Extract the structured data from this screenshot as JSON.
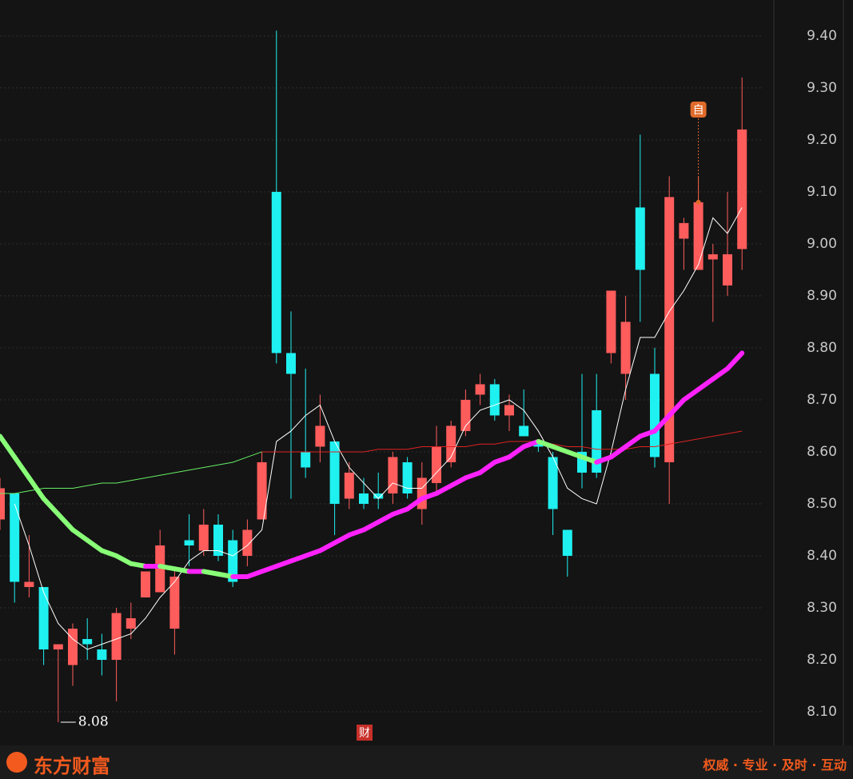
{
  "chart_data": {
    "type": "candlestick",
    "up_color": "#ff5c5c",
    "down_color": "#1ff0f0",
    "open": [
      8.47,
      8.52,
      8.34,
      8.34,
      8.22,
      8.19,
      8.24,
      8.22,
      8.2,
      8.26,
      8.32,
      8.33,
      8.26,
      8.43,
      8.41,
      8.46,
      8.43,
      8.4,
      8.47,
      9.1,
      8.79,
      8.6,
      8.61,
      8.62,
      8.51,
      8.52,
      8.52,
      8.52,
      8.58,
      8.49,
      8.54,
      8.58,
      8.64,
      8.71,
      8.73,
      8.67,
      8.65,
      8.62,
      8.59,
      8.45,
      8.6,
      8.68,
      8.79,
      8.75,
      9.07,
      8.75,
      8.58,
      9.01,
      8.95,
      8.97,
      8.92,
      8.99
    ],
    "high": [
      8.55,
      8.52,
      8.44,
      8.34,
      8.23,
      8.27,
      8.28,
      8.25,
      8.3,
      8.31,
      8.37,
      8.45,
      8.37,
      8.48,
      8.49,
      8.48,
      8.45,
      8.47,
      8.6,
      9.41,
      8.87,
      8.76,
      8.71,
      8.62,
      8.58,
      8.55,
      8.56,
      8.6,
      8.59,
      8.58,
      8.65,
      8.66,
      8.72,
      8.75,
      8.74,
      8.71,
      8.72,
      8.62,
      8.6,
      8.45,
      8.75,
      8.75,
      8.91,
      8.9,
      9.21,
      8.8,
      9.13,
      9.05,
      9.13,
      9.0,
      9.1,
      9.32
    ],
    "low": [
      8.45,
      8.31,
      8.32,
      8.19,
      8.08,
      8.15,
      8.2,
      8.17,
      8.12,
      8.24,
      8.32,
      8.33,
      8.21,
      8.38,
      8.4,
      8.39,
      8.34,
      8.38,
      8.47,
      8.77,
      8.51,
      8.55,
      8.58,
      8.44,
      8.49,
      8.49,
      8.49,
      8.5,
      8.51,
      8.46,
      8.52,
      8.57,
      8.63,
      8.69,
      8.66,
      8.64,
      8.63,
      8.6,
      8.44,
      8.36,
      8.53,
      8.55,
      8.77,
      8.7,
      8.85,
      8.57,
      8.5,
      8.95,
      8.95,
      8.85,
      8.9,
      8.95
    ],
    "close": [
      8.53,
      8.35,
      8.35,
      8.22,
      8.23,
      8.26,
      8.23,
      8.2,
      8.29,
      8.28,
      8.37,
      8.42,
      8.36,
      8.42,
      8.46,
      8.4,
      8.35,
      8.45,
      8.58,
      8.79,
      8.75,
      8.57,
      8.65,
      8.5,
      8.56,
      8.5,
      8.51,
      8.59,
      8.52,
      8.55,
      8.61,
      8.65,
      8.7,
      8.73,
      8.67,
      8.69,
      8.63,
      8.61,
      8.49,
      8.4,
      8.56,
      8.56,
      8.91,
      8.85,
      8.95,
      8.59,
      9.09,
      9.04,
      9.08,
      8.98,
      8.98,
      9.22
    ],
    "lines": [
      {
        "color": "#ffffff",
        "values": [
          null,
          8.5,
          8.42,
          8.33,
          8.27,
          8.24,
          8.22,
          8.23,
          8.24,
          8.25,
          8.28,
          8.32,
          8.35,
          8.39,
          8.41,
          8.41,
          8.4,
          8.42,
          8.45,
          8.62,
          8.64,
          8.67,
          8.69,
          8.62,
          8.57,
          8.54,
          8.51,
          8.54,
          8.53,
          8.53,
          8.56,
          8.59,
          8.65,
          8.68,
          8.69,
          8.7,
          8.68,
          8.64,
          8.59,
          8.53,
          8.51,
          8.5,
          8.6,
          8.72,
          8.82,
          8.82,
          8.87,
          8.91,
          8.96,
          9.05,
          9.02,
          9.07
        ]
      },
      {
        "color": "#66ee66",
        "values": [
          8.52,
          8.52,
          8.525,
          8.53,
          8.53,
          8.53,
          8.535,
          8.54,
          8.54,
          8.545,
          8.55,
          8.555,
          8.56,
          8.565,
          8.57,
          8.575,
          8.58,
          8.59,
          8.6,
          null,
          null,
          null,
          null,
          null,
          null,
          null,
          null,
          null,
          null,
          null,
          null,
          null,
          null,
          null,
          null,
          null,
          null,
          null,
          null,
          null,
          null,
          null,
          null,
          null,
          null,
          null,
          null,
          null,
          null,
          null,
          null,
          null
        ]
      },
      {
        "color": "#dd2222",
        "values": [
          null,
          null,
          null,
          null,
          null,
          null,
          null,
          null,
          null,
          null,
          null,
          null,
          null,
          null,
          null,
          null,
          null,
          null,
          8.6,
          8.6,
          8.6,
          8.6,
          8.6,
          8.6,
          8.6,
          8.6,
          8.605,
          8.605,
          8.605,
          8.61,
          8.61,
          8.61,
          8.61,
          8.615,
          8.615,
          8.62,
          8.62,
          8.62,
          8.615,
          8.61,
          8.61,
          8.605,
          8.605,
          8.605,
          8.61,
          8.61,
          8.615,
          8.62,
          8.625,
          8.63,
          8.635,
          8.64
        ]
      },
      {
        "color": "#ff22ff",
        "down_color": "#88ff77",
        "values": [
          8.63,
          8.59,
          8.55,
          8.51,
          8.48,
          8.45,
          8.43,
          8.41,
          8.4,
          8.385,
          8.38,
          8.38,
          8.375,
          8.37,
          8.37,
          8.365,
          8.36,
          8.36,
          8.37,
          8.38,
          8.39,
          8.4,
          8.41,
          8.425,
          8.44,
          8.45,
          8.465,
          8.48,
          8.49,
          8.51,
          8.52,
          8.535,
          8.55,
          8.56,
          8.58,
          8.59,
          8.61,
          8.62,
          8.61,
          8.6,
          8.59,
          8.58,
          8.59,
          8.61,
          8.63,
          8.64,
          8.67,
          8.7,
          8.72,
          8.74,
          8.76,
          8.79
        ]
      }
    ],
    "ylim": [
      8.0385,
      9.469
    ],
    "yticks": [
      {
        "value": 9.4,
        "label": "9.40"
      },
      {
        "value": 9.3,
        "label": "9.30"
      },
      {
        "value": 9.2,
        "label": "9.20"
      },
      {
        "value": 9.1,
        "label": "9.10"
      },
      {
        "value": 9.0,
        "label": "9.00"
      },
      {
        "value": 8.9,
        "label": "8.90"
      },
      {
        "value": 8.8,
        "label": "8.80"
      },
      {
        "value": 8.7,
        "label": "8.70"
      },
      {
        "value": 8.6,
        "label": "8.60"
      },
      {
        "value": 8.5,
        "label": "8.50"
      },
      {
        "value": 8.4,
        "label": "8.40"
      },
      {
        "value": 8.3,
        "label": "8.30"
      },
      {
        "value": 8.2,
        "label": "8.20"
      },
      {
        "value": 8.1,
        "label": "8.10"
      }
    ],
    "grid": true,
    "low_label": 8.08,
    "self_marker": "自",
    "finance_marker": "财"
  },
  "footer": {
    "brand": "东方财富",
    "slogan": "权威 · 专业 · 及时 · 互动"
  }
}
